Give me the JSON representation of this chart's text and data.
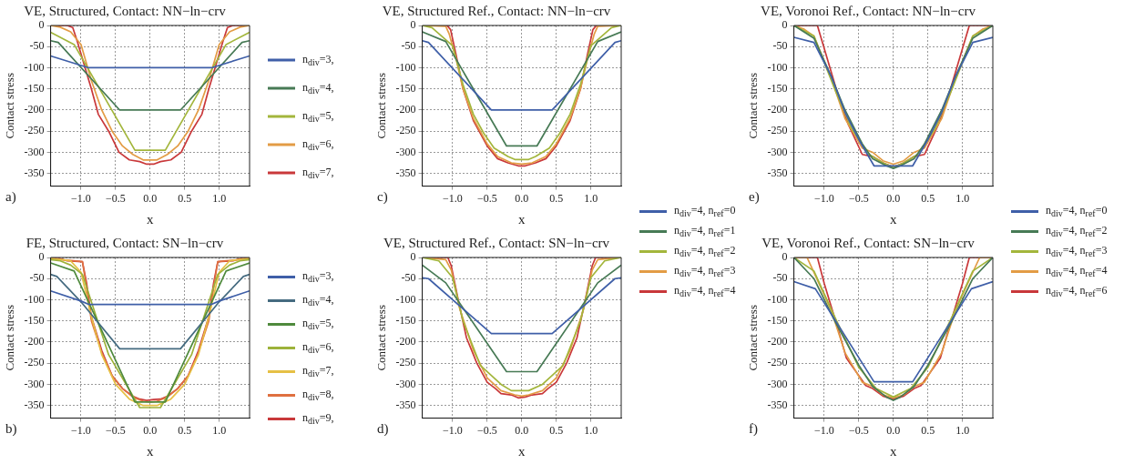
{
  "chart_data": [
    {
      "type": "line",
      "title": "VE, Structured, Contact: NN−ln−crv",
      "xlabel": "x",
      "ylabel": "Contact stress",
      "annotations": [
        "a)"
      ],
      "xlim": [
        -1.44,
        1.44
      ],
      "ylim": [
        -380,
        0
      ],
      "xticks": [
        {
          "value": -1,
          "label": "−1.0"
        },
        {
          "value": -0.5,
          "label": "−0.5"
        },
        {
          "value": 0,
          "label": "0.0"
        },
        {
          "value": 0.5,
          "label": "0.5"
        },
        {
          "value": 1,
          "label": "1.0"
        }
      ],
      "yticks": [
        0,
        -50,
        -100,
        -150,
        -200,
        -250,
        -300,
        -350
      ],
      "grid": true,
      "legend": "right",
      "series": [
        {
          "name": "n$_{div}$=3,",
          "color": "#3f5fa8",
          "x": [
            -1.44,
            -0.89,
            0.89,
            1.44
          ],
          "values": [
            -72,
            -100,
            -100,
            -72
          ]
        },
        {
          "name": "n$_{div}$=4,",
          "color": "#477a55",
          "x": [
            -1.44,
            -1.33,
            -0.44,
            0.44,
            1.33,
            1.44
          ],
          "values": [
            -36,
            -40,
            -200,
            -200,
            -40,
            -36
          ]
        },
        {
          "name": "n$_{div}$=5,",
          "color": "#a3b63c",
          "x": [
            -1.44,
            -1.1,
            -0.22,
            0.22,
            1.1,
            1.44
          ],
          "values": [
            -16,
            -45,
            -295,
            -295,
            -45,
            -16
          ]
        },
        {
          "name": "n$_{div}$=6,",
          "color": "#e39c45",
          "x": [
            -1.44,
            -1.3,
            -1.15,
            -1.0,
            -0.85,
            -0.7,
            -0.55,
            -0.4,
            -0.25,
            -0.1,
            0.1,
            0.25,
            0.4,
            0.55,
            0.7,
            0.85,
            1.0,
            1.15,
            1.3,
            1.44
          ],
          "values": [
            0,
            -4,
            -15,
            -45,
            -130,
            -200,
            -250,
            -285,
            -305,
            -318,
            -318,
            -305,
            -285,
            -250,
            -200,
            -130,
            -45,
            -15,
            -4,
            0
          ]
        },
        {
          "name": "n$_{div}$=7,",
          "color": "#c9383a",
          "x": [
            -1.44,
            -1.2,
            -1.12,
            -1.05,
            -0.95,
            -0.85,
            -0.75,
            -0.6,
            -0.45,
            -0.3,
            -0.15,
            -0.05,
            0.05,
            0.15,
            0.3,
            0.45,
            0.6,
            0.75,
            0.85,
            0.95,
            1.05,
            1.12,
            1.2,
            1.44
          ],
          "values": [
            0,
            0,
            -5,
            -40,
            -95,
            -150,
            -210,
            -250,
            -300,
            -318,
            -322,
            -328,
            -328,
            -322,
            -318,
            -300,
            -250,
            -210,
            -150,
            -95,
            -40,
            -5,
            0,
            0
          ]
        }
      ]
    },
    {
      "type": "line",
      "title": "VE, Structured Ref., Contact: NN−ln−crv",
      "xlabel": "x",
      "ylabel": "Contact stress",
      "annotations": [
        "c)"
      ],
      "xlim": [
        -1.44,
        1.44
      ],
      "ylim": [
        -380,
        0
      ],
      "xticks": [
        {
          "value": -1,
          "label": "−1.0"
        },
        {
          "value": -0.5,
          "label": "−0.5"
        },
        {
          "value": 0,
          "label": "0.0"
        },
        {
          "value": 0.5,
          "label": "0.5"
        },
        {
          "value": 1,
          "label": "1.0"
        }
      ],
      "yticks": [
        0,
        -50,
        -100,
        -150,
        -200,
        -250,
        -300,
        -350
      ],
      "grid": true,
      "legend": "bottom right",
      "series": [
        {
          "name": "n$_{div}$=4, n$_{ref}$=0",
          "color": "#3f5fa8",
          "x": [
            -1.44,
            -1.35,
            -0.44,
            0.44,
            1.35,
            1.44
          ],
          "values": [
            -36,
            -40,
            -200,
            -200,
            -40,
            -36
          ]
        },
        {
          "name": "n$_{div}$=4, n$_{ref}$=1",
          "color": "#477a55",
          "x": [
            -1.44,
            -1.1,
            -0.22,
            0.22,
            1.1,
            1.44
          ],
          "values": [
            -15,
            -38,
            -285,
            -285,
            -38,
            -15
          ]
        },
        {
          "name": "n$_{div}$=4, n$_{ref}$=2",
          "color": "#a3b63c",
          "x": [
            -1.44,
            -1.3,
            -1.0,
            -0.85,
            -0.7,
            -0.55,
            -0.4,
            -0.2,
            -0.1,
            0.1,
            0.2,
            0.4,
            0.55,
            0.7,
            0.85,
            1.0,
            1.3,
            1.44
          ],
          "values": [
            0,
            -5,
            -48,
            -140,
            -210,
            -255,
            -290,
            -310,
            -317,
            -317,
            -310,
            -290,
            -255,
            -210,
            -140,
            -48,
            -5,
            0
          ]
        },
        {
          "name": "n$_{div}$=4, n$_{ref}$=3",
          "color": "#e39c45",
          "x": [
            -1.44,
            -1.1,
            -1.05,
            -0.95,
            -0.85,
            -0.7,
            -0.5,
            -0.35,
            -0.15,
            0,
            0.15,
            0.35,
            0.5,
            0.7,
            0.85,
            0.95,
            1.05,
            1.1,
            1.44
          ],
          "values": [
            0,
            -2,
            -20,
            -80,
            -150,
            -220,
            -280,
            -310,
            -325,
            -328,
            -325,
            -310,
            -280,
            -220,
            -150,
            -80,
            -20,
            -2,
            0
          ]
        },
        {
          "name": "n$_{div}$=4, n$_{ref}$=4",
          "color": "#c9383a",
          "x": [
            -1.44,
            -1.08,
            -1.03,
            -0.95,
            -0.85,
            -0.7,
            -0.5,
            -0.35,
            -0.2,
            -0.05,
            0.05,
            0.2,
            0.35,
            0.5,
            0.7,
            0.85,
            0.95,
            1.03,
            1.08,
            1.44
          ],
          "values": [
            0,
            0,
            -10,
            -70,
            -150,
            -225,
            -285,
            -315,
            -325,
            -332,
            -332,
            -325,
            -315,
            -285,
            -225,
            -150,
            -70,
            -10,
            0,
            0
          ]
        }
      ]
    },
    {
      "type": "line",
      "title": "VE, Voronoi Ref., Contact: NN−ln−crv",
      "xlabel": "x",
      "ylabel": "Contact stress",
      "annotations": [
        "e)"
      ],
      "xlim": [
        -1.44,
        1.44
      ],
      "ylim": [
        -380,
        0
      ],
      "xticks": [
        {
          "value": -1,
          "label": "−1.0"
        },
        {
          "value": -0.5,
          "label": "−0.5"
        },
        {
          "value": 0,
          "label": "0.0"
        },
        {
          "value": 0.5,
          "label": "0.5"
        },
        {
          "value": 1,
          "label": "1.0"
        }
      ],
      "yticks": [
        0,
        -50,
        -100,
        -150,
        -200,
        -250,
        -300,
        -350
      ],
      "grid": true,
      "legend": "bottom right",
      "series": [
        {
          "name": "n$_{div}$=4, n$_{ref}$=0",
          "color": "#3f5fa8",
          "x": [
            -1.44,
            -1.15,
            -0.9,
            -0.7,
            -0.5,
            -0.28,
            0.28,
            0.5,
            0.7,
            0.9,
            1.15,
            1.44
          ],
          "values": [
            -28,
            -40,
            -120,
            -205,
            -270,
            -332,
            -332,
            -270,
            -205,
            -120,
            -40,
            -28
          ]
        },
        {
          "name": "n$_{div}$=4, n$_{ref}$=2",
          "color": "#477a55",
          "x": [
            -1.44,
            -1.15,
            -0.9,
            -0.7,
            -0.45,
            -0.3,
            -0.1,
            0,
            0.1,
            0.3,
            0.45,
            0.7,
            0.9,
            1.15,
            1.44
          ],
          "values": [
            0,
            -30,
            -120,
            -200,
            -280,
            -315,
            -332,
            -338,
            -332,
            -315,
            -280,
            -200,
            -120,
            -30,
            0
          ]
        },
        {
          "name": "n$_{div}$=4, n$_{ref}$=3",
          "color": "#a3b63c",
          "x": [
            -1.44,
            -1.15,
            -0.85,
            -0.6,
            -0.35,
            -0.15,
            0,
            0.15,
            0.35,
            0.6,
            0.85,
            1.15,
            1.44
          ],
          "values": [
            0,
            -25,
            -150,
            -245,
            -305,
            -325,
            -335,
            -325,
            -305,
            -245,
            -150,
            -25,
            0
          ]
        },
        {
          "name": "n$_{div}$=4, n$_{ref}$=4",
          "color": "#e39c45",
          "x": [
            -1.44,
            -1.3,
            -1.15,
            -0.9,
            -0.7,
            -0.45,
            -0.3,
            -0.15,
            0,
            0.15,
            0.3,
            0.45,
            0.7,
            0.9,
            1.15,
            1.3,
            1.44
          ],
          "values": [
            0,
            -8,
            -25,
            -125,
            -220,
            -290,
            -300,
            -320,
            -328,
            -320,
            -300,
            -290,
            -220,
            -125,
            -25,
            -8,
            0
          ]
        },
        {
          "name": "n$_{div}$=4, n$_{ref}$=6",
          "color": "#c9383a",
          "x": [
            -1.44,
            -1.1,
            -1.0,
            -0.8,
            -0.65,
            -0.45,
            -0.3,
            -0.15,
            0,
            0.15,
            0.3,
            0.45,
            0.65,
            0.8,
            1.0,
            1.1,
            1.44
          ],
          "values": [
            0,
            0,
            -55,
            -165,
            -235,
            -305,
            -310,
            -325,
            -335,
            -325,
            -310,
            -305,
            -235,
            -165,
            -55,
            0,
            0
          ]
        }
      ]
    },
    {
      "type": "line",
      "title": "FE, Structured, Contact: SN−ln−crv",
      "xlabel": "x",
      "ylabel": "Contact stress",
      "annotations": [
        "b)"
      ],
      "xlim": [
        -1.44,
        1.44
      ],
      "ylim": [
        -380,
        0
      ],
      "xticks": [
        {
          "value": -1,
          "label": "−1.0"
        },
        {
          "value": -0.5,
          "label": "−0.5"
        },
        {
          "value": 0,
          "label": "0.0"
        },
        {
          "value": 0.5,
          "label": "0.5"
        },
        {
          "value": 1,
          "label": "1.0"
        }
      ],
      "yticks": [
        0,
        -50,
        -100,
        -150,
        -200,
        -250,
        -300,
        -350
      ],
      "grid": true,
      "legend": "right",
      "series": [
        {
          "name": "n$_{div}$=3,",
          "color": "#3f5fa8",
          "x": [
            -1.44,
            -1.0,
            -0.89,
            0.89,
            1.0,
            1.44
          ],
          "values": [
            -79,
            -103,
            -111,
            -111,
            -103,
            -79
          ]
        },
        {
          "name": "n$_{div}$=4,",
          "color": "#456b80",
          "x": [
            -1.44,
            -1.35,
            -1.0,
            -0.44,
            0.44,
            1.0,
            1.35,
            1.44
          ],
          "values": [
            -40,
            -45,
            -105,
            -216,
            -216,
            -105,
            -45,
            -40
          ]
        },
        {
          "name": "n$_{div}$=5,",
          "color": "#4f8a3d",
          "x": [
            -1.44,
            -1.1,
            -0.22,
            0.22,
            1.1,
            1.44
          ],
          "values": [
            -13,
            -32,
            -342,
            -342,
            -32,
            -13
          ]
        },
        {
          "name": "n$_{div}$=6,",
          "color": "#9db23a",
          "x": [
            -1.44,
            -1.3,
            -1.15,
            -0.98,
            -0.6,
            -0.15,
            0.15,
            0.6,
            0.98,
            1.15,
            1.3,
            1.44
          ],
          "values": [
            -5,
            -8,
            -18,
            -40,
            -230,
            -355,
            -355,
            -230,
            -40,
            -18,
            -8,
            -5
          ]
        },
        {
          "name": "n$_{div}$=7,",
          "color": "#e6c045",
          "x": [
            -1.44,
            -1.15,
            -1.0,
            -0.85,
            -0.7,
            -0.5,
            -0.3,
            -0.1,
            0.1,
            0.3,
            0.5,
            0.7,
            0.85,
            1.0,
            1.15,
            1.44
          ],
          "values": [
            -2,
            -8,
            -35,
            -140,
            -230,
            -300,
            -335,
            -350,
            -350,
            -335,
            -300,
            -230,
            -140,
            -35,
            -8,
            -2
          ]
        },
        {
          "name": "n$_{div}$=8,",
          "color": "#df7040",
          "x": [
            -1.44,
            -1.3,
            -1.1,
            -0.98,
            -0.93,
            -0.85,
            -0.7,
            -0.55,
            -0.4,
            -0.25,
            -0.1,
            0,
            0.1,
            0.25,
            0.4,
            0.55,
            0.7,
            0.85,
            0.93,
            0.98,
            1.1,
            1.3,
            1.44
          ],
          "values": [
            -3,
            -5,
            -8,
            -10,
            -60,
            -150,
            -225,
            -280,
            -310,
            -330,
            -340,
            -342,
            -340,
            -330,
            -310,
            -280,
            -225,
            -150,
            -60,
            -10,
            -8,
            -5,
            -3
          ]
        },
        {
          "name": "n$_{div}$=9,",
          "color": "#c9383a",
          "x": [
            -1.44,
            -1.3,
            -1.2,
            -0.98,
            -0.92,
            -0.85,
            -0.7,
            -0.55,
            -0.4,
            -0.25,
            -0.15,
            -0.05,
            0.05,
            0.15,
            0.25,
            0.4,
            0.55,
            0.7,
            0.85,
            0.92,
            0.98,
            1.2,
            1.3,
            1.44
          ],
          "values": [
            -2,
            -3,
            -8,
            -10,
            -60,
            -140,
            -220,
            -280,
            -310,
            -328,
            -335,
            -338,
            -336,
            -335,
            -328,
            -310,
            -280,
            -220,
            -140,
            -60,
            -10,
            -8,
            -3,
            -2
          ]
        }
      ]
    },
    {
      "type": "line",
      "title": "VE, Structured Ref., Contact: SN−ln−crv",
      "xlabel": "x",
      "ylabel": "Contact stress",
      "annotations": [
        "d)"
      ],
      "xlim": [
        -1.44,
        1.44
      ],
      "ylim": [
        -380,
        0
      ],
      "xticks": [
        {
          "value": -1,
          "label": "−1.0"
        },
        {
          "value": -0.5,
          "label": "−0.5"
        },
        {
          "value": 0,
          "label": "0.0"
        },
        {
          "value": 0.5,
          "label": "0.5"
        },
        {
          "value": 1,
          "label": "1.0"
        }
      ],
      "yticks": [
        0,
        -50,
        -100,
        -150,
        -200,
        -250,
        -300,
        -350
      ],
      "grid": true,
      "series": [
        {
          "color": "#3f5fa8",
          "x": [
            -1.44,
            -1.35,
            -0.44,
            0.44,
            1.35,
            1.44
          ],
          "values": [
            -48,
            -50,
            -180,
            -180,
            -50,
            -48
          ]
        },
        {
          "color": "#477a55",
          "x": [
            -1.44,
            -1.1,
            -0.22,
            0.22,
            1.1,
            1.44
          ],
          "values": [
            -18,
            -60,
            -270,
            -270,
            -60,
            -18
          ]
        },
        {
          "color": "#a3b63c",
          "x": [
            -1.44,
            -1.2,
            -1.0,
            -0.85,
            -0.6,
            -0.3,
            -0.15,
            0.1,
            0.3,
            0.6,
            0.85,
            1.0,
            1.2,
            1.44
          ],
          "values": [
            0,
            -8,
            -48,
            -150,
            -255,
            -300,
            -315,
            -315,
            -300,
            -255,
            -150,
            -48,
            -8,
            0
          ]
        },
        {
          "color": "#e39c45",
          "x": [
            -1.44,
            -1.1,
            -1.02,
            -0.9,
            -0.7,
            -0.5,
            -0.3,
            -0.1,
            0,
            0.1,
            0.3,
            0.5,
            0.7,
            0.9,
            1.02,
            1.1,
            1.44
          ],
          "values": [
            0,
            -5,
            -30,
            -120,
            -220,
            -285,
            -315,
            -325,
            -328,
            -325,
            -315,
            -285,
            -220,
            -120,
            -30,
            -5,
            0
          ]
        },
        {
          "color": "#c9383a",
          "x": [
            -1.44,
            -1.07,
            -1.02,
            -0.92,
            -0.8,
            -0.65,
            -0.5,
            -0.38,
            -0.3,
            -0.15,
            -0.05,
            0.05,
            0.15,
            0.3,
            0.38,
            0.5,
            0.65,
            0.8,
            0.92,
            1.02,
            1.07,
            1.44
          ],
          "values": [
            0,
            0,
            -20,
            -100,
            -190,
            -250,
            -295,
            -310,
            -322,
            -325,
            -332,
            -330,
            -325,
            -322,
            -310,
            -295,
            -250,
            -190,
            -100,
            -20,
            0,
            0
          ]
        }
      ]
    },
    {
      "type": "line",
      "title": "VE, Voronoi Ref., Contact: SN−ln−crv",
      "xlabel": "x",
      "ylabel": "Contact stress",
      "annotations": [
        "f)"
      ],
      "xlim": [
        -1.44,
        1.44
      ],
      "ylim": [
        -380,
        0
      ],
      "xticks": [
        {
          "value": -1,
          "label": "−1.0"
        },
        {
          "value": -0.5,
          "label": "−0.5"
        },
        {
          "value": 0,
          "label": "0.0"
        },
        {
          "value": 0.5,
          "label": "0.5"
        },
        {
          "value": 1,
          "label": "1.0"
        }
      ],
      "yticks": [
        0,
        -50,
        -100,
        -150,
        -200,
        -250,
        -300,
        -350
      ],
      "grid": true,
      "series": [
        {
          "color": "#3f5fa8",
          "x": [
            -1.44,
            -1.13,
            -0.28,
            0.28,
            1.13,
            1.44
          ],
          "values": [
            -57,
            -74,
            -294,
            -294,
            -74,
            -57
          ]
        },
        {
          "color": "#477a55",
          "x": [
            -1.44,
            -1.15,
            -0.85,
            -0.5,
            -0.3,
            -0.1,
            0,
            0.1,
            0.3,
            0.5,
            0.85,
            1.15,
            1.44
          ],
          "values": [
            0,
            -50,
            -150,
            -255,
            -305,
            -330,
            -338,
            -330,
            -305,
            -255,
            -150,
            -50,
            0
          ]
        },
        {
          "color": "#a3b63c",
          "x": [
            -1.44,
            -1.15,
            -0.85,
            -0.5,
            -0.25,
            0,
            0.25,
            0.5,
            0.85,
            1.15,
            1.44
          ],
          "values": [
            0,
            -32,
            -140,
            -260,
            -310,
            -330,
            -310,
            -260,
            -140,
            -32,
            0
          ]
        },
        {
          "color": "#e39c45",
          "x": [
            -1.44,
            -1.25,
            -1.15,
            -0.9,
            -0.7,
            -0.45,
            -0.3,
            -0.15,
            0,
            0.15,
            0.3,
            0.45,
            0.7,
            0.9,
            1.15,
            1.25,
            1.44
          ],
          "values": [
            0,
            0,
            -35,
            -125,
            -225,
            -295,
            -305,
            -325,
            -332,
            -325,
            -305,
            -295,
            -225,
            -125,
            -35,
            0,
            0
          ]
        },
        {
          "color": "#c9383a",
          "x": [
            -1.44,
            -1.1,
            -1.0,
            -0.8,
            -0.68,
            -0.4,
            -0.3,
            -0.15,
            0,
            0.15,
            0.3,
            0.4,
            0.68,
            0.8,
            1.0,
            1.1,
            1.44
          ],
          "values": [
            0,
            0,
            -62,
            -170,
            -238,
            -303,
            -310,
            -328,
            -335,
            -328,
            -310,
            -303,
            -238,
            -170,
            -62,
            0,
            0
          ]
        }
      ]
    }
  ]
}
